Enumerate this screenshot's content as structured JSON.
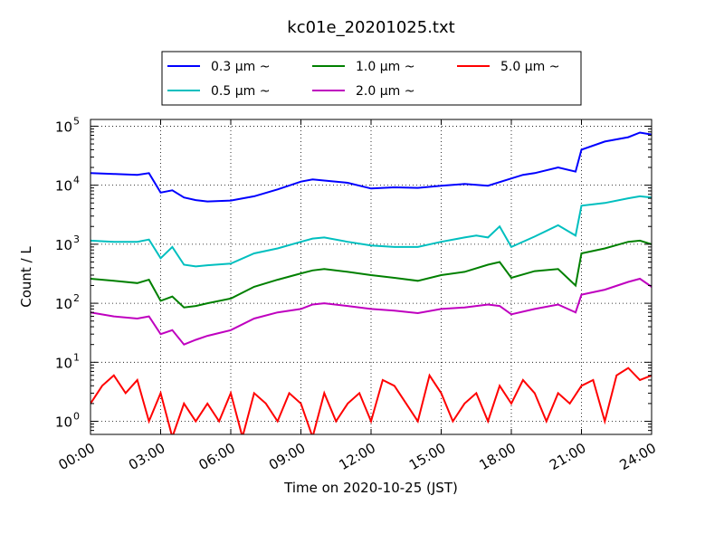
{
  "chart_data": {
    "type": "line",
    "title": "kc01e_20201025.txt",
    "xlabel": "Time on 2020-10-25 (JST)",
    "ylabel": "Count / L",
    "yscale": "log",
    "ylim": [
      0.6,
      130000
    ],
    "xlim": [
      "00:00",
      "24:00"
    ],
    "x_ticks": [
      "00:00",
      "03:00",
      "06:00",
      "09:00",
      "12:00",
      "15:00",
      "18:00",
      "21:00",
      "24:00"
    ],
    "y_ticks": [
      {
        "value": 1,
        "base": "10",
        "exp": "0"
      },
      {
        "value": 10,
        "base": "10",
        "exp": "1"
      },
      {
        "value": 100,
        "base": "10",
        "exp": "2"
      },
      {
        "value": 1000,
        "base": "10",
        "exp": "3"
      },
      {
        "value": 10000,
        "base": "10",
        "exp": "4"
      },
      {
        "value": 100000,
        "base": "10",
        "exp": "5"
      }
    ],
    "grid": true,
    "legend_position": "top-center",
    "series": [
      {
        "name": "0.3 μm ~",
        "color": "#0000ff",
        "x": [
          "00:00",
          "01:00",
          "02:00",
          "02:30",
          "03:00",
          "03:30",
          "04:00",
          "04:30",
          "05:00",
          "06:00",
          "07:00",
          "08:00",
          "09:00",
          "09:30",
          "10:00",
          "11:00",
          "12:00",
          "13:00",
          "14:00",
          "15:00",
          "16:00",
          "17:00",
          "18:00",
          "18:30",
          "19:00",
          "20:00",
          "20:45",
          "21:00",
          "22:00",
          "23:00",
          "23:30",
          "24:00"
        ],
        "values": [
          16000,
          15500,
          15000,
          16000,
          7500,
          8200,
          6200,
          5600,
          5300,
          5500,
          6500,
          8500,
          11500,
          12500,
          12000,
          11000,
          8800,
          9200,
          9000,
          9800,
          10500,
          9800,
          13000,
          15000,
          16000,
          20000,
          17000,
          40000,
          55000,
          65000,
          78000,
          72000
        ]
      },
      {
        "name": "0.5 μm ~",
        "color": "#00bfbf",
        "x": [
          "00:00",
          "01:00",
          "02:00",
          "02:30",
          "03:00",
          "03:30",
          "04:00",
          "04:30",
          "05:00",
          "06:00",
          "07:00",
          "08:00",
          "09:00",
          "09:30",
          "10:00",
          "11:00",
          "12:00",
          "13:00",
          "14:00",
          "15:00",
          "16:00",
          "16:30",
          "17:00",
          "17:30",
          "18:00",
          "19:00",
          "20:00",
          "20:45",
          "21:00",
          "22:00",
          "23:00",
          "23:30",
          "24:00"
        ],
        "values": [
          1150,
          1100,
          1100,
          1200,
          580,
          900,
          450,
          420,
          440,
          470,
          700,
          850,
          1100,
          1250,
          1300,
          1100,
          950,
          900,
          900,
          1100,
          1300,
          1400,
          1300,
          2000,
          900,
          1350,
          2100,
          1400,
          4500,
          5000,
          6000,
          6500,
          6200
        ]
      },
      {
        "name": "1.0 μm ~",
        "color": "#008000",
        "x": [
          "00:00",
          "01:00",
          "02:00",
          "02:30",
          "03:00",
          "03:30",
          "04:00",
          "04:30",
          "05:00",
          "06:00",
          "07:00",
          "08:00",
          "09:00",
          "09:30",
          "10:00",
          "11:00",
          "12:00",
          "13:00",
          "14:00",
          "15:00",
          "16:00",
          "17:00",
          "17:30",
          "18:00",
          "19:00",
          "20:00",
          "20:45",
          "21:00",
          "22:00",
          "23:00",
          "23:30",
          "24:00"
        ],
        "values": [
          260,
          240,
          220,
          250,
          110,
          130,
          85,
          90,
          100,
          120,
          190,
          250,
          320,
          360,
          380,
          340,
          300,
          270,
          240,
          300,
          340,
          450,
          500,
          270,
          350,
          380,
          200,
          700,
          850,
          1100,
          1150,
          1000
        ]
      },
      {
        "name": "2.0 μm ~",
        "color": "#bf00bf",
        "x": [
          "00:00",
          "01:00",
          "02:00",
          "02:30",
          "03:00",
          "03:30",
          "04:00",
          "04:30",
          "05:00",
          "06:00",
          "07:00",
          "08:00",
          "09:00",
          "09:30",
          "10:00",
          "11:00",
          "12:00",
          "13:00",
          "14:00",
          "15:00",
          "16:00",
          "17:00",
          "17:30",
          "18:00",
          "19:00",
          "20:00",
          "20:45",
          "21:00",
          "22:00",
          "23:00",
          "23:30",
          "24:00"
        ],
        "values": [
          70,
          60,
          55,
          60,
          30,
          35,
          20,
          24,
          28,
          35,
          55,
          70,
          80,
          95,
          100,
          90,
          80,
          75,
          68,
          80,
          85,
          95,
          90,
          65,
          80,
          95,
          70,
          140,
          170,
          230,
          260,
          190
        ]
      },
      {
        "name": "5.0 μm ~",
        "color": "#ff0000",
        "x": [
          "00:00",
          "00:30",
          "01:00",
          "01:30",
          "02:00",
          "02:30",
          "03:00",
          "03:30",
          "04:00",
          "04:30",
          "05:00",
          "05:30",
          "06:00",
          "06:30",
          "07:00",
          "07:30",
          "08:00",
          "08:30",
          "09:00",
          "09:30",
          "10:00",
          "10:30",
          "11:00",
          "11:30",
          "12:00",
          "12:30",
          "13:00",
          "13:30",
          "14:00",
          "14:30",
          "15:00",
          "15:30",
          "16:00",
          "16:30",
          "17:00",
          "17:30",
          "18:00",
          "18:30",
          "19:00",
          "19:30",
          "20:00",
          "20:30",
          "21:00",
          "21:30",
          "22:00",
          "22:30",
          "23:00",
          "23:30",
          "24:00"
        ],
        "values": [
          2,
          4,
          6,
          3,
          5,
          1,
          3,
          0.5,
          2,
          1,
          2,
          1,
          3,
          0.5,
          3,
          2,
          1,
          3,
          2,
          0.5,
          3,
          1,
          2,
          3,
          1,
          5,
          4,
          2,
          1,
          6,
          3,
          1,
          2,
          3,
          1,
          4,
          2,
          5,
          3,
          1,
          3,
          2,
          4,
          5,
          1,
          6,
          8,
          5,
          6
        ]
      }
    ]
  }
}
